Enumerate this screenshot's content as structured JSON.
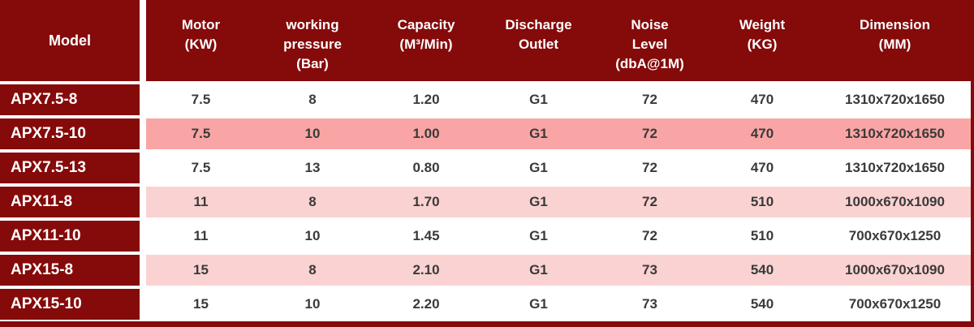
{
  "colors": {
    "maroon": "#850A0A",
    "deep_pink": "#FAA5A5",
    "light_pink": "#FBD2D2",
    "row_white": "#FFFFFF",
    "text_dark": "#3A3A3A",
    "text_light": "#FFFFFF"
  },
  "table": {
    "header": {
      "model": "Model",
      "columns": [
        "Motor\n(KW)",
        "working\npressure\n(Bar)",
        "Capacity\n(M³/Min)",
        "Discharge\nOutlet",
        "Noise\nLevel\n(dbA@1M)",
        "Weight\n(KG)",
        "Dimension\n(MM)"
      ]
    },
    "rows": [
      {
        "model": "APX7.5-8",
        "values": [
          "7.5",
          "8",
          "1.20",
          "G1",
          "72",
          "470",
          "1310x720x1650"
        ],
        "bg": "#FFFFFF"
      },
      {
        "model": "APX7.5-10",
        "values": [
          "7.5",
          "10",
          "1.00",
          "G1",
          "72",
          "470",
          "1310x720x1650"
        ],
        "bg": "#FAA5A5"
      },
      {
        "model": "APX7.5-13",
        "values": [
          "7.5",
          "13",
          "0.80",
          "G1",
          "72",
          "470",
          "1310x720x1650"
        ],
        "bg": "#FFFFFF"
      },
      {
        "model": "APX11-8",
        "values": [
          "11",
          "8",
          "1.70",
          "G1",
          "72",
          "510",
          "1000x670x1090"
        ],
        "bg": "#FBD2D2"
      },
      {
        "model": "APX11-10",
        "values": [
          "11",
          "10",
          "1.45",
          "G1",
          "72",
          "510",
          "700x670x1250"
        ],
        "bg": "#FFFFFF"
      },
      {
        "model": "APX15-8",
        "values": [
          "15",
          "8",
          "2.10",
          "G1",
          "73",
          "540",
          "1000x670x1090"
        ],
        "bg": "#FBD2D2"
      },
      {
        "model": "APX15-10",
        "values": [
          "15",
          "10",
          "2.20",
          "G1",
          "73",
          "540",
          "700x670x1250"
        ],
        "bg": "#FFFFFF"
      }
    ]
  }
}
